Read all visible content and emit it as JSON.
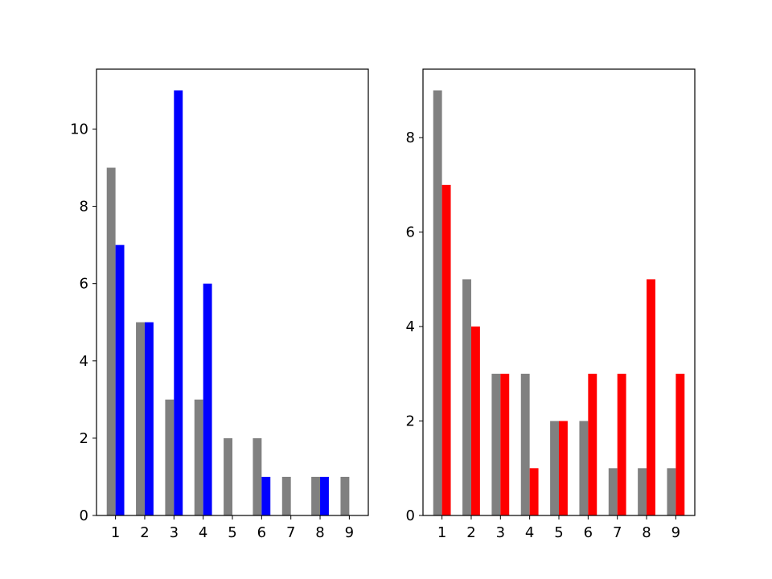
{
  "chart_data": [
    {
      "type": "bar",
      "categories": [
        "1",
        "2",
        "3",
        "4",
        "5",
        "6",
        "7",
        "8",
        "9"
      ],
      "series": [
        {
          "values": [
            9,
            5,
            3,
            3,
            2,
            2,
            1,
            1,
            1
          ],
          "color": "#808080"
        },
        {
          "values": [
            7,
            5,
            11,
            6,
            0,
            1,
            0,
            1,
            0
          ],
          "color": "#0000ff"
        }
      ],
      "yticks": [
        0,
        2,
        4,
        6,
        8,
        10
      ],
      "ylim": [
        0,
        11.55
      ],
      "xlim": [
        0.35,
        9.65
      ],
      "title": "",
      "xlabel": "",
      "ylabel": "",
      "grid": false
    },
    {
      "type": "bar",
      "categories": [
        "1",
        "2",
        "3",
        "4",
        "5",
        "6",
        "7",
        "8",
        "9"
      ],
      "series": [
        {
          "values": [
            9,
            5,
            3,
            3,
            2,
            2,
            1,
            1,
            1
          ],
          "color": "#808080"
        },
        {
          "values": [
            7,
            4,
            3,
            1,
            2,
            3,
            3,
            5,
            3
          ],
          "color": "#ff0000"
        }
      ],
      "yticks": [
        0,
        2,
        4,
        6,
        8
      ],
      "ylim": [
        0,
        9.45
      ],
      "xlim": [
        0.35,
        9.65
      ],
      "title": "",
      "xlabel": "",
      "ylabel": "",
      "grid": false
    }
  ]
}
